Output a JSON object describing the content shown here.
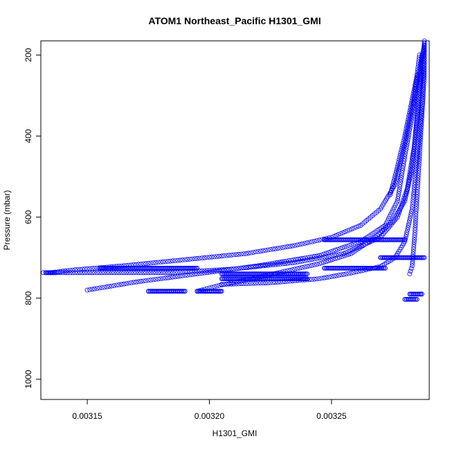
{
  "chart_data": {
    "type": "scatter",
    "title": "ATOM1 Northeast_Pacific H1301_GMI",
    "xlabel": "H1301_GMI",
    "ylabel": "Pressure (mbar)",
    "xlim": [
      0.003131,
      0.00329
    ],
    "ylim": [
      1050,
      165
    ],
    "y_inverted": true,
    "x_ticks": [
      0.00315,
      0.0032,
      0.00325
    ],
    "x_tick_labels": [
      "0.00315",
      "0.00320",
      "0.00325"
    ],
    "y_ticks": [
      200,
      400,
      600,
      800,
      1000
    ],
    "y_tick_labels": [
      "200",
      "400",
      "600",
      "800",
      "1000"
    ],
    "marker": "open-circle",
    "series_color": "#0000ff",
    "grid": false,
    "profiles": [
      [
        [
          0.003288,
          165
        ],
        [
          0.003288,
          250
        ],
        [
          0.003287,
          350
        ],
        [
          0.003286,
          450
        ],
        [
          0.003285,
          550
        ],
        [
          0.003284,
          650
        ],
        [
          0.003283,
          720
        ],
        [
          0.003282,
          740
        ]
      ],
      [
        [
          0.003288,
          175
        ],
        [
          0.003284,
          300
        ],
        [
          0.00328,
          420
        ],
        [
          0.003276,
          520
        ],
        [
          0.00327,
          580
        ],
        [
          0.003262,
          620
        ],
        [
          0.00325,
          650
        ],
        [
          0.003235,
          670
        ],
        [
          0.003215,
          690
        ],
        [
          0.00319,
          705
        ],
        [
          0.003165,
          720
        ],
        [
          0.003145,
          730
        ],
        [
          0.003135,
          737
        ]
      ],
      [
        [
          0.003286,
          200
        ],
        [
          0.003283,
          350
        ],
        [
          0.00328,
          450
        ],
        [
          0.003277,
          560
        ],
        [
          0.003272,
          620
        ],
        [
          0.003262,
          660
        ],
        [
          0.003245,
          695
        ],
        [
          0.00322,
          720
        ],
        [
          0.003195,
          740
        ],
        [
          0.00317,
          760
        ],
        [
          0.00315,
          780
        ]
      ],
      [
        [
          0.003288,
          170
        ],
        [
          0.003286,
          300
        ],
        [
          0.003284,
          420
        ],
        [
          0.003281,
          530
        ],
        [
          0.003277,
          600
        ],
        [
          0.00327,
          650
        ],
        [
          0.003255,
          690
        ],
        [
          0.003235,
          712
        ],
        [
          0.00321,
          728
        ],
        [
          0.003185,
          737
        ],
        [
          0.003155,
          737
        ],
        [
          0.003132,
          737
        ]
      ],
      [
        [
          0.003285,
          250
        ],
        [
          0.00328,
          400
        ],
        [
          0.003276,
          500
        ],
        [
          0.003274,
          545
        ]
      ],
      [
        [
          0.003287,
          200
        ],
        [
          0.003285,
          350
        ],
        [
          0.003283,
          480
        ],
        [
          0.00328,
          560
        ],
        [
          0.003275,
          610
        ],
        [
          0.003268,
          650
        ],
        [
          0.003258,
          690
        ],
        [
          0.003245,
          715
        ],
        [
          0.00323,
          735
        ],
        [
          0.003215,
          755
        ],
        [
          0.003203,
          770
        ],
        [
          0.003195,
          783
        ]
      ],
      [
        [
          0.003288,
          190
        ],
        [
          0.003287,
          330
        ],
        [
          0.003285,
          460
        ],
        [
          0.003283,
          580
        ],
        [
          0.00328,
          660
        ],
        [
          0.003276,
          700
        ],
        [
          0.00327,
          722
        ],
        [
          0.003258,
          738
        ],
        [
          0.003245,
          752
        ],
        [
          0.003225,
          762
        ],
        [
          0.003205,
          766
        ]
      ]
    ],
    "clusters": [
      {
        "x_from": 0.00328,
        "x_to": 0.003285,
        "y": 803
      },
      {
        "x_from": 0.003282,
        "x_to": 0.003287,
        "y": 790
      },
      {
        "x_from": 0.003205,
        "x_to": 0.00324,
        "y": 752
      },
      {
        "x_from": 0.003205,
        "x_to": 0.00324,
        "y": 740
      },
      {
        "x_from": 0.003247,
        "x_to": 0.00328,
        "y": 656
      },
      {
        "x_from": 0.003247,
        "x_to": 0.003272,
        "y": 726
      },
      {
        "x_from": 0.003133,
        "x_to": 0.003137,
        "y": 737
      },
      {
        "x_from": 0.003175,
        "x_to": 0.00319,
        "y": 783
      },
      {
        "x_from": 0.003195,
        "x_to": 0.003205,
        "y": 783
      },
      {
        "x_from": 0.003155,
        "x_to": 0.003195,
        "y": 726
      },
      {
        "x_from": 0.00327,
        "x_to": 0.003288,
        "y": 700
      }
    ]
  }
}
